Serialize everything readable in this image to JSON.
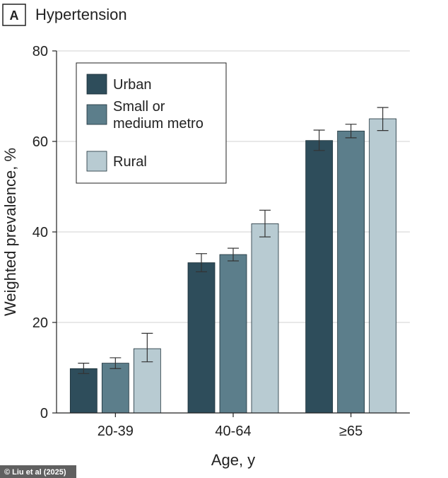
{
  "chart_data": {
    "type": "bar",
    "panel_label": "A",
    "title": "Hypertension",
    "xlabel": "Age, y",
    "ylabel": "Weighted prevalence, %",
    "ylim": [
      0,
      80
    ],
    "yticks": [
      0,
      20,
      40,
      60,
      80
    ],
    "categories": [
      "20-39",
      "40-64",
      "≥65"
    ],
    "grid": true,
    "legend_position": "top-left",
    "series": [
      {
        "name": "Urban",
        "name_lines": [
          "Urban"
        ],
        "color": "#2e4d5b",
        "values": [
          9.8,
          33.2,
          60.2
        ],
        "ci_low": [
          8.7,
          31.2,
          58.0
        ],
        "ci_high": [
          11.0,
          35.2,
          62.5
        ]
      },
      {
        "name": "Small or medium metro",
        "name_lines": [
          "Small or",
          "medium metro"
        ],
        "color": "#5c7e8b",
        "values": [
          11.0,
          35.0,
          62.3
        ],
        "ci_low": [
          9.8,
          33.6,
          60.8
        ],
        "ci_high": [
          12.2,
          36.4,
          63.8
        ]
      },
      {
        "name": "Rural",
        "name_lines": [
          "Rural"
        ],
        "color": "#b8cbd2",
        "values": [
          14.2,
          41.8,
          65.0
        ],
        "ci_low": [
          11.3,
          38.9,
          62.4
        ],
        "ci_high": [
          17.6,
          44.8,
          67.5
        ]
      }
    ]
  },
  "credit": "© Liu et al (2025)"
}
